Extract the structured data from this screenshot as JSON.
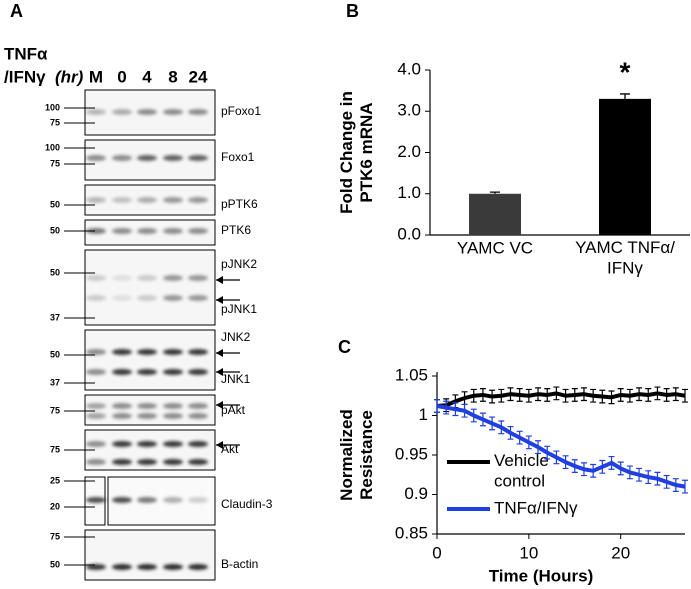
{
  "blot_panel": {
    "panel_label": "A",
    "treatment_label": [
      "TNFα",
      "/IFNγ"
    ],
    "time_unit": "(hr)",
    "lanes": [
      "M",
      "0",
      "4",
      "8",
      "24"
    ],
    "blots": [
      {
        "markers": [
          "100",
          "75"
        ],
        "labels": [
          "pFoxo1"
        ]
      },
      {
        "markers": [
          "100",
          "75"
        ],
        "labels": [
          "Foxo1"
        ]
      },
      {
        "markers": [
          "50"
        ],
        "labels": [
          "pPTK6"
        ]
      },
      {
        "markers": [
          "50"
        ],
        "labels": [
          "PTK6"
        ]
      },
      {
        "markers": [
          "50",
          "37"
        ],
        "labels": [
          "pJNK2",
          "pJNK1"
        ]
      },
      {
        "markers": [
          "50",
          "37"
        ],
        "labels": [
          "JNK2",
          "JNK1"
        ]
      },
      {
        "markers": [
          "75"
        ],
        "labels": [
          "pAkt"
        ]
      },
      {
        "markers": [
          "75"
        ],
        "labels": [
          "Akt"
        ]
      },
      {
        "markers": [
          "25",
          "20"
        ],
        "labels": [
          "Claudin-3"
        ]
      },
      {
        "markers": [
          "75",
          "50"
        ],
        "labels": [
          "B-actin"
        ]
      }
    ]
  },
  "chart_data": [
    {
      "type": "bar",
      "panel_label": "B",
      "y_label": "Fold Change in\nPTK6 mRNA",
      "categories": [
        "YAMC VC",
        "YAMC TNFα/\nIFNγ"
      ],
      "values": [
        1.0,
        3.3
      ],
      "errors": [
        0.04,
        0.12
      ],
      "colors": [
        "#3a3a3a",
        "#000000"
      ],
      "significance_label": "*",
      "ylim": [
        0,
        4
      ],
      "yticks": [
        {
          "value": 0,
          "label": "0.0"
        },
        {
          "value": 1,
          "label": "1.0"
        },
        {
          "value": 2,
          "label": "2.0"
        },
        {
          "value": 3,
          "label": "3.0"
        },
        {
          "value": 4,
          "label": "4.0"
        }
      ]
    },
    {
      "type": "line",
      "panel_label": "C",
      "x_label": "Time (Hours)",
      "y_label": "Normalized\nResistance",
      "x": [
        0,
        1,
        2,
        3,
        4,
        5,
        6,
        7,
        8,
        9,
        10,
        11,
        12,
        13,
        14,
        15,
        16,
        17,
        18,
        19,
        20,
        21,
        22,
        23,
        24,
        25,
        26,
        27
      ],
      "series": [
        {
          "name": "Vehicle\ncontrol",
          "color": "#000000",
          "values": [
            1.012,
            1.013,
            1.018,
            1.022,
            1.025,
            1.026,
            1.024,
            1.025,
            1.027,
            1.026,
            1.025,
            1.027,
            1.026,
            1.028,
            1.025,
            1.026,
            1.027,
            1.025,
            1.024,
            1.023,
            1.026,
            1.025,
            1.027,
            1.026,
            1.028,
            1.026,
            1.027,
            1.025
          ],
          "errors": [
            0.008,
            0.008,
            0.008,
            0.008,
            0.008,
            0.008,
            0.008,
            0.008,
            0.008,
            0.008,
            0.008,
            0.008,
            0.008,
            0.008,
            0.008,
            0.008,
            0.008,
            0.008,
            0.008,
            0.008,
            0.008,
            0.008,
            0.008,
            0.008,
            0.008,
            0.008,
            0.008,
            0.008
          ]
        },
        {
          "name": "TNFα/IFNγ",
          "color": "#1f3fe0",
          "values": [
            1.012,
            1.01,
            1.008,
            1.006,
            1.0,
            0.995,
            0.99,
            0.985,
            0.978,
            0.972,
            0.966,
            0.96,
            0.953,
            0.947,
            0.941,
            0.936,
            0.932,
            0.93,
            0.935,
            0.94,
            0.933,
            0.928,
            0.925,
            0.922,
            0.92,
            0.916,
            0.912,
            0.91
          ],
          "errors": [
            0.008,
            0.008,
            0.008,
            0.008,
            0.008,
            0.008,
            0.008,
            0.008,
            0.008,
            0.008,
            0.008,
            0.008,
            0.008,
            0.008,
            0.008,
            0.008,
            0.008,
            0.008,
            0.008,
            0.008,
            0.008,
            0.008,
            0.008,
            0.008,
            0.008,
            0.008,
            0.008,
            0.008
          ]
        }
      ],
      "xlim": [
        0,
        27
      ],
      "xticks": [
        0,
        10,
        20
      ],
      "ylim": [
        0.85,
        1.05
      ],
      "yticks": [
        0.85,
        0.9,
        0.95,
        1,
        1.05
      ]
    }
  ]
}
